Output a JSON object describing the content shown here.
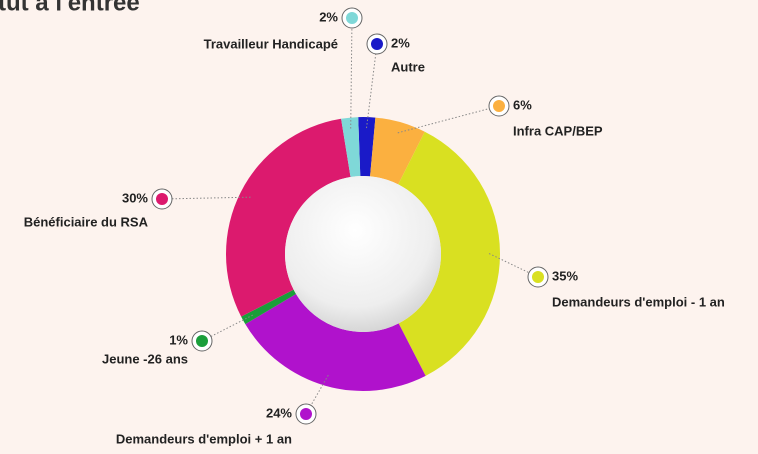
{
  "chart_data": {
    "type": "donut",
    "title": "tut à l'entrée",
    "categories": [
      "Autre",
      "Infra CAP/BEP",
      "Demandeurs d'emploi - 1 an",
      "Demandeurs d'emploi + 1 an",
      "Jeune -26 ans",
      "Bénéficiaire du RSA",
      "Travailleur Handicapé"
    ],
    "values": [
      2,
      6,
      35,
      24,
      1,
      30,
      2
    ],
    "value_labels": [
      "2%",
      "6%",
      "35%",
      "24%",
      "1%",
      "30%",
      "2%"
    ],
    "colors": [
      "#1a1ac8",
      "#fbb040",
      "#d9e021",
      "#b012cc",
      "#1a9e3a",
      "#dc1a6e",
      "#7fd8d8"
    ]
  }
}
